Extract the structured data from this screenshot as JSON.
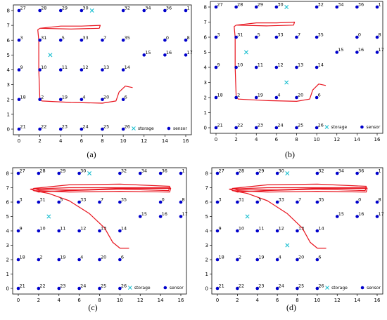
{
  "chart_data": [
    {
      "panel": "a",
      "caption": "(a)",
      "type": "scatter",
      "xlim": [
        0,
        16
      ],
      "ylim": [
        0,
        8
      ],
      "xticks": [
        0,
        2,
        4,
        6,
        8,
        10,
        12,
        14,
        16
      ],
      "yticks": [
        0,
        1,
        2,
        3,
        4,
        5,
        6,
        7,
        8
      ],
      "legend": {
        "placement": "bottom-right",
        "storage": "storage",
        "sensor": "sensor"
      },
      "storage": [
        {
          "x": 7,
          "y": 8
        },
        {
          "x": 3,
          "y": 5
        }
      ],
      "path": [
        [
          2,
          6.8
        ],
        [
          1.8,
          6.7
        ],
        [
          1.9,
          6
        ],
        [
          1.9,
          4
        ],
        [
          2,
          2.1
        ],
        [
          2.2,
          1.9
        ],
        [
          5,
          1.8
        ],
        [
          8,
          1.75
        ],
        [
          9.3,
          1.9
        ],
        [
          9.6,
          2.5
        ],
        [
          10.2,
          2.9
        ],
        [
          10.9,
          2.8
        ]
      ],
      "path_tail": [
        [
          2,
          6.8
        ],
        [
          4,
          6.95
        ],
        [
          6,
          6.95
        ],
        [
          7.8,
          7.0
        ],
        [
          7.7,
          6.8
        ],
        [
          5,
          6.75
        ],
        [
          2,
          6.8
        ]
      ]
    },
    {
      "panel": "b",
      "caption": "(b)",
      "type": "scatter",
      "xlim": [
        0,
        16
      ],
      "ylim": [
        0,
        8
      ],
      "xticks": [
        0,
        2,
        4,
        6,
        8,
        10,
        12,
        14,
        16
      ],
      "yticks": [
        0,
        1,
        2,
        3,
        4,
        5,
        6,
        7,
        8
      ],
      "legend": {
        "placement": "bottom-right",
        "storage": "storage",
        "sensor": "sensor"
      },
      "storage": [
        {
          "x": 7,
          "y": 8
        },
        {
          "x": 3,
          "y": 5
        },
        {
          "x": 7,
          "y": 3
        }
      ],
      "path": [
        [
          2,
          6.8
        ],
        [
          1.8,
          6.7
        ],
        [
          1.9,
          6
        ],
        [
          1.9,
          4
        ],
        [
          2,
          2.1
        ],
        [
          2.2,
          1.9
        ],
        [
          5,
          1.8
        ],
        [
          8,
          1.75
        ],
        [
          9.3,
          1.9
        ],
        [
          9.6,
          2.5
        ],
        [
          10.2,
          2.9
        ],
        [
          10.9,
          2.8
        ]
      ],
      "path_tail": [
        [
          2,
          6.8
        ],
        [
          4,
          6.95
        ],
        [
          6,
          6.95
        ],
        [
          7.8,
          7.0
        ],
        [
          7.7,
          6.8
        ],
        [
          5,
          6.75
        ],
        [
          2,
          6.8
        ]
      ]
    },
    {
      "panel": "c",
      "caption": "(c)",
      "type": "scatter",
      "xlim": [
        0,
        16
      ],
      "ylim": [
        0,
        8
      ],
      "xticks": [
        0,
        2,
        4,
        6,
        8,
        10,
        12,
        14,
        16
      ],
      "yticks": [
        0,
        1,
        2,
        3,
        4,
        5,
        6,
        7,
        8
      ],
      "legend": {
        "placement": "bottom-right",
        "storage": "storage",
        "sensor": "sensor"
      },
      "storage": [
        {
          "x": 7,
          "y": 8
        },
        {
          "x": 3,
          "y": 5
        }
      ],
      "path": [
        [
          15,
          7
        ],
        [
          10,
          7
        ],
        [
          5,
          7
        ],
        [
          1.2,
          6.9
        ],
        [
          2,
          6.7
        ],
        [
          5,
          6.8
        ],
        [
          10,
          6.9
        ],
        [
          14.8,
          6.8
        ],
        [
          14.9,
          7.1
        ],
        [
          10,
          7.25
        ],
        [
          5,
          7.2
        ],
        [
          1.5,
          6.95
        ],
        [
          2,
          6.85
        ],
        [
          6,
          6.85
        ],
        [
          10,
          6.95
        ],
        [
          15,
          6.95
        ],
        [
          14.9,
          6.7
        ],
        [
          10,
          6.75
        ],
        [
          5,
          6.7
        ],
        [
          1.5,
          6.8
        ],
        [
          3,
          6.6
        ],
        [
          5,
          6.1
        ],
        [
          7,
          5.2
        ],
        [
          8.5,
          4.2
        ],
        [
          9.3,
          3.2
        ],
        [
          10,
          2.8
        ],
        [
          10.9,
          2.8
        ]
      ],
      "path_tail": []
    },
    {
      "panel": "d",
      "caption": "(d)",
      "type": "scatter",
      "xlim": [
        0,
        16
      ],
      "ylim": [
        0,
        8
      ],
      "xticks": [
        0,
        2,
        4,
        6,
        8,
        10,
        12,
        14,
        16
      ],
      "yticks": [
        0,
        1,
        2,
        3,
        4,
        5,
        6,
        7,
        8
      ],
      "legend": {
        "placement": "bottom-right",
        "storage": "storage",
        "sensor": "sensor"
      },
      "storage": [
        {
          "x": 7,
          "y": 8
        },
        {
          "x": 3,
          "y": 5
        },
        {
          "x": 7,
          "y": 3
        }
      ],
      "path": [
        [
          15,
          7
        ],
        [
          10,
          7
        ],
        [
          5,
          7
        ],
        [
          1.2,
          6.9
        ],
        [
          2,
          6.7
        ],
        [
          5,
          6.8
        ],
        [
          10,
          6.9
        ],
        [
          14.8,
          6.8
        ],
        [
          14.9,
          7.1
        ],
        [
          10,
          7.25
        ],
        [
          5,
          7.2
        ],
        [
          1.5,
          6.95
        ],
        [
          2,
          6.85
        ],
        [
          6,
          6.85
        ],
        [
          10,
          6.95
        ],
        [
          15,
          6.95
        ],
        [
          14.9,
          6.7
        ],
        [
          10,
          6.75
        ],
        [
          5,
          6.7
        ],
        [
          1.5,
          6.8
        ],
        [
          3,
          6.6
        ],
        [
          5,
          6.1
        ],
        [
          7,
          5.2
        ],
        [
          8.5,
          4.2
        ],
        [
          9.3,
          3.2
        ],
        [
          10,
          2.8
        ],
        [
          10.9,
          2.8
        ]
      ],
      "path_tail": []
    }
  ],
  "sensors": [
    {
      "id": "27",
      "x": 0,
      "y": 8
    },
    {
      "id": "28",
      "x": 2,
      "y": 8
    },
    {
      "id": "29",
      "x": 4,
      "y": 8
    },
    {
      "id": "30",
      "x": 6,
      "y": 8
    },
    {
      "id": "32",
      "x": 10,
      "y": 8
    },
    {
      "id": "34",
      "x": 12,
      "y": 8
    },
    {
      "id": "36",
      "x": 14,
      "y": 8
    },
    {
      "id": "1",
      "x": 16,
      "y": 8
    },
    {
      "id": "3",
      "x": 0,
      "y": 6
    },
    {
      "id": "31",
      "x": 2,
      "y": 6
    },
    {
      "id": "5",
      "x": 4,
      "y": 6
    },
    {
      "id": "33",
      "x": 6,
      "y": 6
    },
    {
      "id": "7",
      "x": 8,
      "y": 6
    },
    {
      "id": "35",
      "x": 10,
      "y": 6
    },
    {
      "id": "0",
      "x": 14,
      "y": 6
    },
    {
      "id": "8",
      "x": 16,
      "y": 6
    },
    {
      "id": "15",
      "x": 12,
      "y": 5
    },
    {
      "id": "16",
      "x": 14,
      "y": 5
    },
    {
      "id": "17",
      "x": 16,
      "y": 5
    },
    {
      "id": "9",
      "x": 0,
      "y": 4
    },
    {
      "id": "10",
      "x": 2,
      "y": 4
    },
    {
      "id": "11",
      "x": 4,
      "y": 4
    },
    {
      "id": "12",
      "x": 6,
      "y": 4
    },
    {
      "id": "13",
      "x": 8,
      "y": 4
    },
    {
      "id": "14",
      "x": 10,
      "y": 4
    },
    {
      "id": "18",
      "x": 0,
      "y": 2
    },
    {
      "id": "2",
      "x": 2,
      "y": 2
    },
    {
      "id": "19",
      "x": 4,
      "y": 2
    },
    {
      "id": "4",
      "x": 6,
      "y": 2
    },
    {
      "id": "20",
      "x": 8,
      "y": 2
    },
    {
      "id": "6",
      "x": 10,
      "y": 2
    },
    {
      "id": "21",
      "x": 0,
      "y": 0
    },
    {
      "id": "22",
      "x": 2,
      "y": 0
    },
    {
      "id": "23",
      "x": 4,
      "y": 0
    },
    {
      "id": "24",
      "x": 6,
      "y": 0
    },
    {
      "id": "25",
      "x": 8,
      "y": 0
    },
    {
      "id": "26",
      "x": 10,
      "y": 0
    }
  ],
  "colors": {
    "sensor": "#0000cc",
    "storage": "#17becf",
    "path": "#e8141e"
  }
}
